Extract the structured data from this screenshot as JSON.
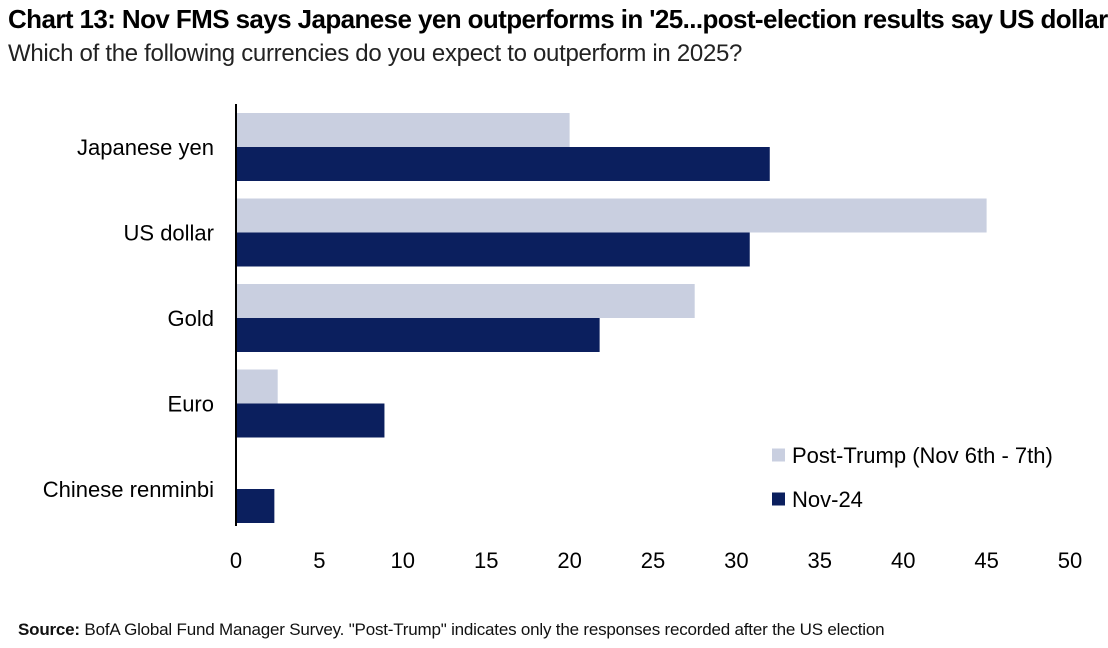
{
  "title": "Chart 13: Nov FMS says Japanese yen outperforms in '25...post-election results say US dollar",
  "subtitle": "Which of the following currencies do you expect to outperform in 2025?",
  "source_label": "Source:",
  "source_text": " BofA Global Fund Manager Survey. \"Post-Trump\" indicates only the responses recorded after the US election",
  "colors": {
    "post_trump": "#c9cfe0",
    "nov24": "#0b1f5e",
    "axis": "#000000"
  },
  "chart_data": {
    "type": "bar",
    "orientation": "horizontal",
    "categories": [
      "Japanese yen",
      "US dollar",
      "Gold",
      "Euro",
      "Chinese renminbi"
    ],
    "series": [
      {
        "name": "Post-Trump (Nov 6th - 7th)",
        "values": [
          20,
          45,
          27.5,
          2.5,
          0
        ]
      },
      {
        "name": "Nov-24",
        "values": [
          32,
          30.8,
          21.8,
          8.9,
          2.3
        ]
      }
    ],
    "xlim": [
      0,
      50
    ],
    "xticks": [
      0,
      5,
      10,
      15,
      20,
      25,
      30,
      35,
      40,
      45,
      50
    ],
    "grid": false,
    "legend_position": "bottom-right"
  }
}
